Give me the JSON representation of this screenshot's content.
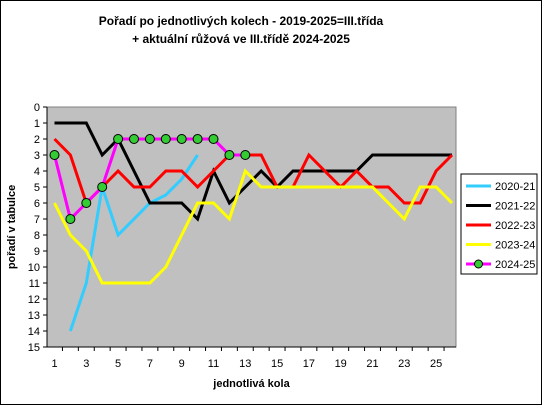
{
  "chart_data": {
    "type": "line",
    "title": "Pořadí po jednotlivých kolech - 2019-2025=III.třída",
    "subtitle": "+ aktuální růžová ve III.třídě 2024-2025",
    "xlabel": "jednotlivá kola",
    "ylabel": "pořadí v tabulce",
    "xlim": [
      1,
      26
    ],
    "ylim": [
      0,
      15
    ],
    "y_inverted": true,
    "x_tick_labels": [
      "1",
      "3",
      "5",
      "7",
      "9",
      "11",
      "13",
      "15",
      "17",
      "19",
      "21",
      "23",
      "25"
    ],
    "y_tick_labels": [
      "0",
      "1",
      "2",
      "3",
      "4",
      "5",
      "6",
      "7",
      "8",
      "9",
      "10",
      "11",
      "12",
      "13",
      "14",
      "15"
    ],
    "plot_background": "#c0c0c0",
    "grid": false,
    "legend_position": "right",
    "series": [
      {
        "name": "2020-21",
        "color": "#33ccff",
        "x": [
          2,
          3,
          4,
          5,
          6,
          7,
          8,
          9,
          10
        ],
        "y": [
          14,
          11,
          5,
          8,
          7,
          6,
          5.5,
          4.5,
          3
        ]
      },
      {
        "name": "2021-22",
        "color": "#000000",
        "x": [
          1,
          2,
          3,
          4,
          5,
          6,
          7,
          8,
          9,
          10,
          11,
          12,
          13,
          14,
          15,
          16,
          17,
          18,
          19,
          20,
          21,
          22,
          23,
          24,
          25,
          26
        ],
        "y": [
          1,
          1,
          1,
          3,
          2,
          4,
          6,
          6,
          6,
          7,
          4,
          6,
          5,
          4,
          5,
          4,
          4,
          4,
          4,
          4,
          3,
          3,
          3,
          3,
          3,
          3
        ]
      },
      {
        "name": "2022-23",
        "color": "#ff0000",
        "x": [
          1,
          2,
          3,
          4,
          5,
          6,
          7,
          8,
          9,
          10,
          11,
          12,
          13,
          14,
          15,
          16,
          17,
          18,
          19,
          20,
          21,
          22,
          23,
          24,
          25,
          26
        ],
        "y": [
          2,
          3,
          6,
          5,
          4,
          5,
          5,
          4,
          4,
          5,
          4,
          3,
          3,
          3,
          5,
          5,
          3,
          4,
          5,
          4,
          5,
          5,
          6,
          6,
          4,
          3
        ]
      },
      {
        "name": "2023-24",
        "color": "#ffff00",
        "x": [
          1,
          2,
          3,
          4,
          5,
          6,
          7,
          8,
          9,
          10,
          11,
          12,
          13,
          14,
          15,
          16,
          17,
          18,
          19,
          20,
          21,
          22,
          23,
          24,
          25,
          26
        ],
        "y": [
          6,
          8,
          9,
          11,
          11,
          11,
          11,
          10,
          8,
          6,
          6,
          7,
          4,
          5,
          5,
          5,
          5,
          5,
          5,
          5,
          5,
          6,
          7,
          5,
          5,
          6
        ]
      },
      {
        "name": "2024-25",
        "color": "#ff00ff",
        "marker": true,
        "marker_color": "#33cc33",
        "x": [
          1,
          2,
          3,
          4,
          5,
          6,
          7,
          8,
          9,
          10,
          11,
          12,
          13
        ],
        "y": [
          3,
          7,
          6,
          5,
          2,
          2,
          2,
          2,
          2,
          2,
          2,
          3,
          3
        ]
      }
    ]
  }
}
